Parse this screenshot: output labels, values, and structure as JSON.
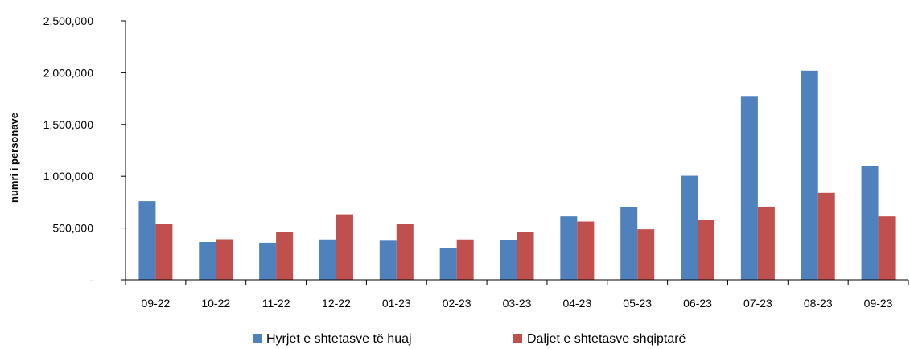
{
  "chart_data": {
    "type": "bar",
    "title": "",
    "xlabel": "",
    "ylabel": "numri i personave",
    "categories": [
      "09-22",
      "10-22",
      "11-22",
      "12-22",
      "01-23",
      "02-23",
      "03-23",
      "04-23",
      "05-23",
      "06-23",
      "07-23",
      "08-23",
      "09-23"
    ],
    "series": [
      {
        "name": "Hyrjet e shtetasve të huaj",
        "color": "#4f81bd",
        "values": [
          760000,
          365000,
          358000,
          390000,
          378000,
          308000,
          383000,
          612000,
          702000,
          1005000,
          1768000,
          2020000,
          1102000
        ]
      },
      {
        "name": "Daljet e shtetasve shqiptarë",
        "color": "#c0504d",
        "values": [
          540000,
          392000,
          460000,
          632000,
          540000,
          390000,
          460000,
          563000,
          488000,
          575000,
          707000,
          840000,
          612000
        ]
      }
    ],
    "ylim": [
      0,
      2500000
    ],
    "yticks": [
      0,
      500000,
      1000000,
      1500000,
      2000000,
      2500000
    ],
    "ytick_labels": [
      "-",
      "500,000",
      "1,000,000",
      "1,500,000",
      "2,000,000",
      "2,500,000"
    ],
    "grid": false,
    "legend": "bottom-center"
  }
}
